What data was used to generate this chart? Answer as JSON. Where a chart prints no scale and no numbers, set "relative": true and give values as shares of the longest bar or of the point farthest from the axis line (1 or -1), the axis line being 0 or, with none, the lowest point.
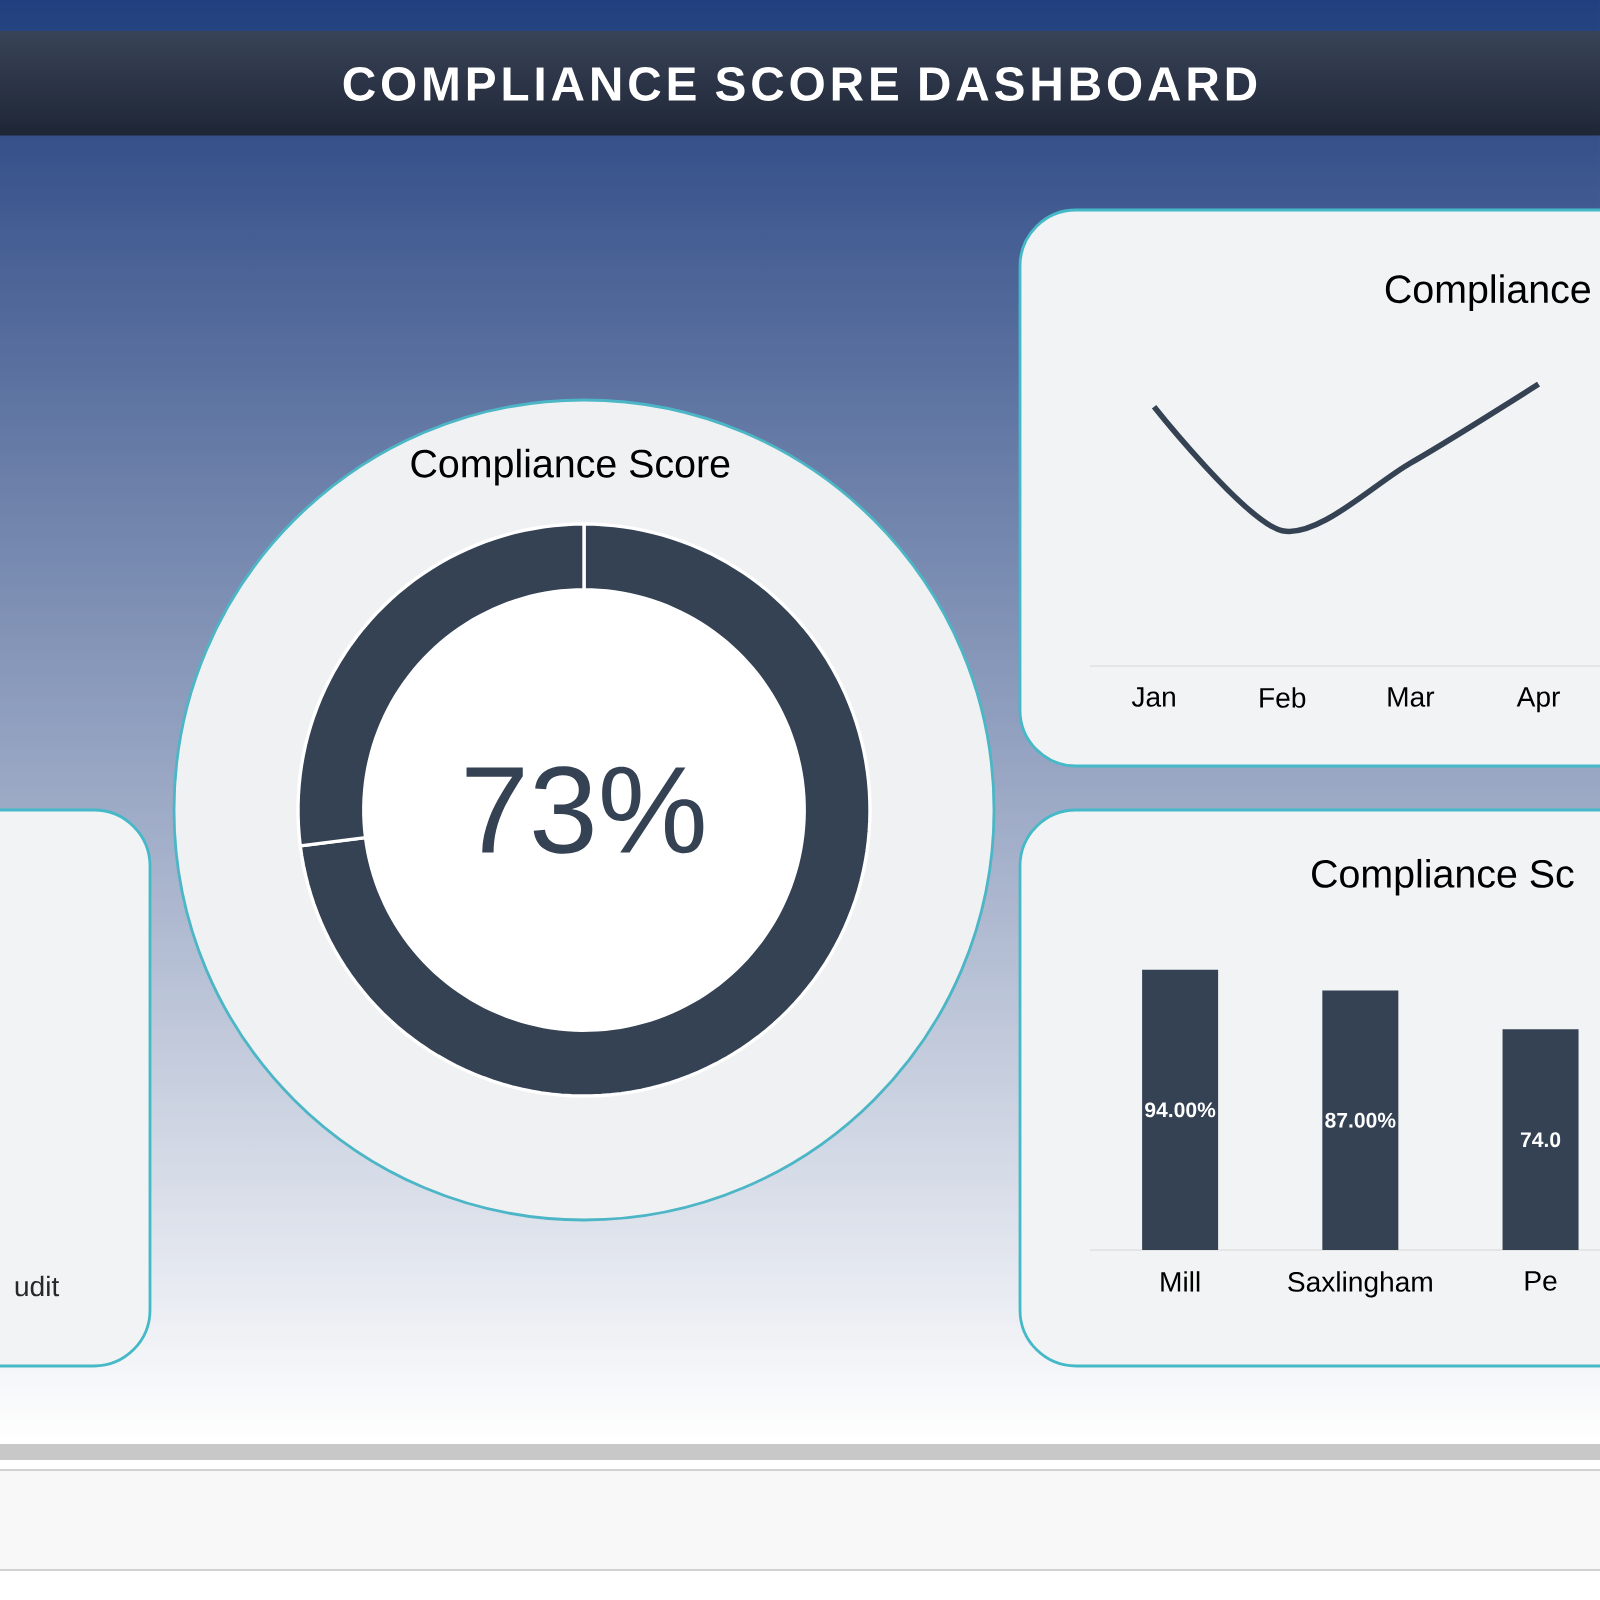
{
  "chart_data": [
    {
      "type": "other",
      "title": "COMPLIANCE SCORE DASHBOARD"
    },
    {
      "type": "other",
      "annotations": [
        "udit"
      ]
    },
    {
      "type": "donut",
      "title": "Compliance Score",
      "categories": [
        null,
        null
      ],
      "values": [
        73,
        27
      ],
      "colors": [
        "#354254",
        "#354254"
      ],
      "value_labels": [
        "73%",
        null
      ]
    },
    {
      "type": "line",
      "title": "Compliance",
      "categories": [
        "Jan",
        "Feb",
        "Mar",
        "Apr"
      ],
      "values": [
        0.92,
        0.48,
        0.72,
        1
      ],
      "color": "#354254",
      "relative": true
    },
    {
      "type": "bar",
      "title": "Compliance Sc",
      "categories": [
        "Mill",
        "Saxlingham",
        "Pe"
      ],
      "values": [
        94,
        87,
        74
      ],
      "color": "#354254",
      "value_labels": [
        "94.00%",
        "87.00%",
        "74.0"
      ]
    }
  ]
}
